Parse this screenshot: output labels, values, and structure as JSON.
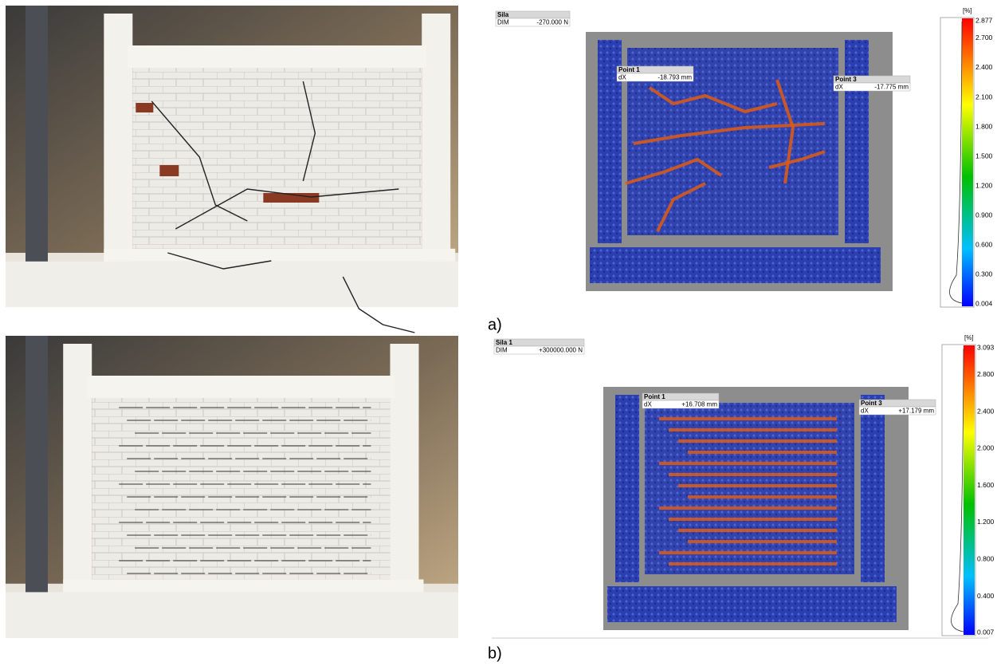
{
  "panels": [
    {
      "label": "a)",
      "info": {
        "title": "Sila",
        "key": "DIM",
        "value": "-270.000 N"
      },
      "points": [
        {
          "name": "Point 1",
          "key": "dX",
          "value": "-18.793 mm"
        },
        {
          "name": "Point 3",
          "key": "dX",
          "value": "-17.775 mm"
        }
      ],
      "colorbar": {
        "unit": "[%]",
        "ticks": [
          "2.877",
          "2.700",
          "2.400",
          "2.100",
          "1.800",
          "1.500",
          "1.200",
          "0.900",
          "0.600",
          "0.300",
          "0.004"
        ]
      }
    },
    {
      "label": "b)",
      "info": {
        "title": "Sila 1",
        "key": "DIM",
        "value": "+300000.000 N"
      },
      "points": [
        {
          "name": "Point 1",
          "key": "dX",
          "value": "+16.708 mm"
        },
        {
          "name": "Point 3",
          "key": "dX",
          "value": "+17.179 mm"
        }
      ],
      "colorbar": {
        "unit": "[%]",
        "ticks": [
          "3.093",
          "2.800",
          "2.400",
          "2.000",
          "1.600",
          "1.200",
          "0.800",
          "0.400",
          "0.007"
        ]
      }
    }
  ]
}
